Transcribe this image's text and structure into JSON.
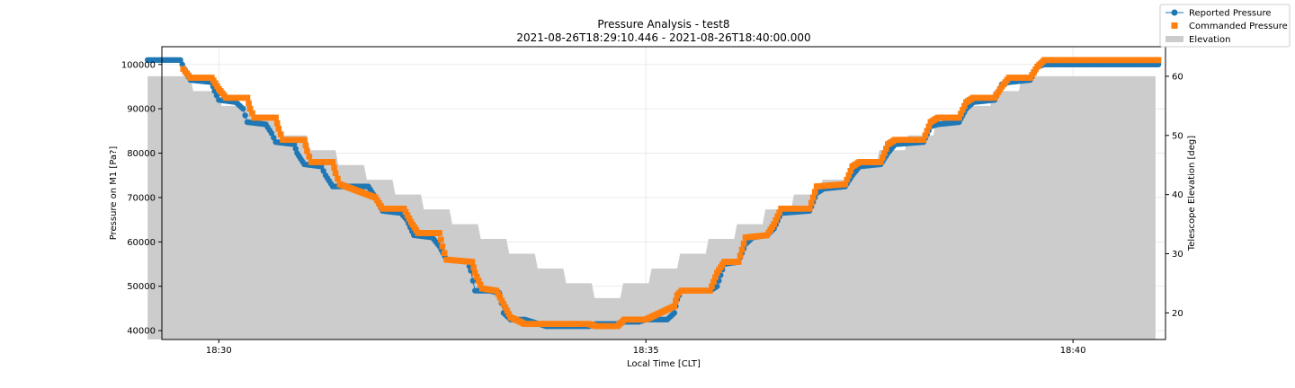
{
  "chart_data": {
    "type": "line",
    "title": "Pressure Analysis - test8",
    "subtitle": "2021-08-26T18:29:10.446 - 2021-08-26T18:40:00.000",
    "xlabel": "Local Time [CLT]",
    "ylabel": "Pressure on M1 [Pa?]",
    "y2label": "Telescope Elevation [deg]",
    "xlim": [
      "18:29:20",
      "18:41:05"
    ],
    "ylim": [
      38000,
      104000
    ],
    "y2lim": [
      15.5,
      65
    ],
    "x_ticks": [
      "18:30",
      "18:35",
      "18:40"
    ],
    "y_ticks": [
      40000,
      50000,
      60000,
      70000,
      80000,
      90000,
      100000
    ],
    "y2_ticks": [
      20,
      30,
      40,
      50,
      60
    ],
    "grid": true,
    "legend_position": "upper right, outside the axes",
    "series": [
      {
        "name": "Reported Pressure",
        "axis": "left",
        "style": "line with circle markers",
        "color": "#1f77b4",
        "points": [
          [
            "18:29:10",
            101000
          ],
          [
            "18:29:33",
            101000
          ],
          [
            "18:29:37",
            98000
          ],
          [
            "18:29:40",
            96500
          ],
          [
            "18:29:55",
            96000
          ],
          [
            "18:29:57",
            94000
          ],
          [
            "18:30:00",
            92000
          ],
          [
            "18:30:12",
            91500
          ],
          [
            "18:30:17",
            90000
          ],
          [
            "18:30:20",
            87000
          ],
          [
            "18:30:33",
            86500
          ],
          [
            "18:30:37",
            84500
          ],
          [
            "18:30:40",
            82500
          ],
          [
            "18:30:53",
            82000
          ],
          [
            "18:30:55",
            80000
          ],
          [
            "18:31:00",
            77500
          ],
          [
            "18:31:12",
            77000
          ],
          [
            "18:31:15",
            75000
          ],
          [
            "18:31:20",
            72500
          ],
          [
            "18:31:45",
            72500
          ],
          [
            "18:31:50",
            70000
          ],
          [
            "18:31:55",
            67000
          ],
          [
            "18:32:08",
            66500
          ],
          [
            "18:32:12",
            65000
          ],
          [
            "18:32:17",
            61500
          ],
          [
            "18:32:30",
            61000
          ],
          [
            "18:32:35",
            59000
          ],
          [
            "18:32:40",
            56000
          ],
          [
            "18:32:55",
            55500
          ],
          [
            "18:32:57",
            53500
          ],
          [
            "18:33:00",
            49000
          ],
          [
            "18:33:10",
            49000
          ],
          [
            "18:33:17",
            48500
          ],
          [
            "18:33:20",
            44000
          ],
          [
            "18:33:25",
            42500
          ],
          [
            "18:33:35",
            42500
          ],
          [
            "18:33:50",
            41000
          ],
          [
            "18:34:20",
            41000
          ],
          [
            "18:34:25",
            41500
          ],
          [
            "18:34:40",
            41500
          ],
          [
            "18:34:45",
            42000
          ],
          [
            "18:34:55",
            42000
          ],
          [
            "18:35:00",
            42500
          ],
          [
            "18:35:15",
            42500
          ],
          [
            "18:35:20",
            44000
          ],
          [
            "18:35:22",
            47000
          ],
          [
            "18:35:25",
            49000
          ],
          [
            "18:35:45",
            49000
          ],
          [
            "18:35:50",
            50000
          ],
          [
            "18:35:55",
            55000
          ],
          [
            "18:36:05",
            55500
          ],
          [
            "18:36:10",
            59500
          ],
          [
            "18:36:15",
            61000
          ],
          [
            "18:36:25",
            61500
          ],
          [
            "18:36:30",
            63000
          ],
          [
            "18:36:35",
            66500
          ],
          [
            "18:36:55",
            67000
          ],
          [
            "18:37:00",
            71000
          ],
          [
            "18:37:05",
            72000
          ],
          [
            "18:37:20",
            72500
          ],
          [
            "18:37:25",
            75000
          ],
          [
            "18:37:30",
            77000
          ],
          [
            "18:37:45",
            77500
          ],
          [
            "18:37:50",
            80000
          ],
          [
            "18:37:55",
            82000
          ],
          [
            "18:38:15",
            82500
          ],
          [
            "18:38:20",
            86000
          ],
          [
            "18:38:25",
            86500
          ],
          [
            "18:38:40",
            87000
          ],
          [
            "18:38:45",
            90000
          ],
          [
            "18:38:50",
            91500
          ],
          [
            "18:39:05",
            92000
          ],
          [
            "18:39:10",
            95500
          ],
          [
            "18:39:15",
            96000
          ],
          [
            "18:39:30",
            96500
          ],
          [
            "18:39:35",
            99500
          ],
          [
            "18:39:40",
            100000
          ],
          [
            "18:41:00",
            100000
          ]
        ]
      },
      {
        "name": "Commanded Pressure",
        "axis": "left",
        "style": "square markers",
        "color": "#ff7f0e",
        "points": [
          [
            "18:29:35",
            99000
          ],
          [
            "18:29:40",
            97000
          ],
          [
            "18:29:55",
            97000
          ],
          [
            "18:30:00",
            94500
          ],
          [
            "18:30:05",
            92500
          ],
          [
            "18:30:20",
            92500
          ],
          [
            "18:30:22",
            90000
          ],
          [
            "18:30:25",
            88000
          ],
          [
            "18:30:40",
            88000
          ],
          [
            "18:30:42",
            85500
          ],
          [
            "18:30:45",
            83000
          ],
          [
            "18:31:00",
            83000
          ],
          [
            "18:31:02",
            80500
          ],
          [
            "18:31:05",
            78000
          ],
          [
            "18:31:20",
            78000
          ],
          [
            "18:31:22",
            75500
          ],
          [
            "18:31:25",
            73000
          ],
          [
            "18:31:50",
            70000
          ],
          [
            "18:31:55",
            67500
          ],
          [
            "18:32:10",
            67500
          ],
          [
            "18:32:15",
            64500
          ],
          [
            "18:32:20",
            62000
          ],
          [
            "18:32:35",
            62000
          ],
          [
            "18:32:37",
            59000
          ],
          [
            "18:32:40",
            56000
          ],
          [
            "18:32:58",
            55500
          ],
          [
            "18:33:00",
            53000
          ],
          [
            "18:33:05",
            49500
          ],
          [
            "18:33:15",
            49000
          ],
          [
            "18:33:20",
            46000
          ],
          [
            "18:33:25",
            43000
          ],
          [
            "18:33:35",
            41500
          ],
          [
            "18:34:20",
            41500
          ],
          [
            "18:34:25",
            41000
          ],
          [
            "18:34:40",
            41000
          ],
          [
            "18:34:45",
            42500
          ],
          [
            "18:35:00",
            42500
          ],
          [
            "18:35:20",
            45500
          ],
          [
            "18:35:22",
            48000
          ],
          [
            "18:35:25",
            49000
          ],
          [
            "18:35:45",
            49000
          ],
          [
            "18:35:50",
            53000
          ],
          [
            "18:35:55",
            55500
          ],
          [
            "18:36:05",
            55500
          ],
          [
            "18:36:10",
            61000
          ],
          [
            "18:36:25",
            61500
          ],
          [
            "18:36:30",
            64000
          ],
          [
            "18:36:35",
            67500
          ],
          [
            "18:36:55",
            67500
          ],
          [
            "18:37:00",
            72500
          ],
          [
            "18:37:20",
            73000
          ],
          [
            "18:37:25",
            77000
          ],
          [
            "18:37:30",
            78000
          ],
          [
            "18:37:45",
            78000
          ],
          [
            "18:37:50",
            82000
          ],
          [
            "18:37:55",
            83000
          ],
          [
            "18:38:15",
            83000
          ],
          [
            "18:38:20",
            87000
          ],
          [
            "18:38:25",
            88000
          ],
          [
            "18:38:40",
            88000
          ],
          [
            "18:38:45",
            91500
          ],
          [
            "18:38:50",
            92500
          ],
          [
            "18:39:05",
            92500
          ],
          [
            "18:39:10",
            95000
          ],
          [
            "18:39:15",
            97000
          ],
          [
            "18:39:30",
            97000
          ],
          [
            "18:39:35",
            99500
          ],
          [
            "18:39:40",
            101000
          ],
          [
            "18:41:00",
            101000
          ]
        ]
      },
      {
        "name": "Elevation",
        "axis": "right",
        "style": "filled area",
        "color": "#cccccc",
        "points": [
          [
            "18:29:10",
            60
          ],
          [
            "18:29:40",
            60
          ],
          [
            "18:29:42",
            57.5
          ],
          [
            "18:30:00",
            57.5
          ],
          [
            "18:30:02",
            55
          ],
          [
            "18:30:22",
            55
          ],
          [
            "18:30:24",
            52.5
          ],
          [
            "18:30:42",
            52.5
          ],
          [
            "18:30:44",
            50
          ],
          [
            "18:31:02",
            50
          ],
          [
            "18:31:04",
            47.5
          ],
          [
            "18:31:22",
            47.5
          ],
          [
            "18:31:24",
            45
          ],
          [
            "18:31:42",
            45
          ],
          [
            "18:31:44",
            42.5
          ],
          [
            "18:32:02",
            42.5
          ],
          [
            "18:32:04",
            40
          ],
          [
            "18:32:22",
            40
          ],
          [
            "18:32:24",
            37.5
          ],
          [
            "18:32:42",
            37.5
          ],
          [
            "18:32:44",
            35
          ],
          [
            "18:33:02",
            35
          ],
          [
            "18:33:04",
            32.5
          ],
          [
            "18:33:22",
            32.5
          ],
          [
            "18:33:24",
            30
          ],
          [
            "18:33:42",
            30
          ],
          [
            "18:33:44",
            27.5
          ],
          [
            "18:34:02",
            27.5
          ],
          [
            "18:34:04",
            25
          ],
          [
            "18:34:22",
            25
          ],
          [
            "18:34:24",
            22.5
          ],
          [
            "18:34:42",
            22.5
          ],
          [
            "18:34:44",
            25
          ],
          [
            "18:35:02",
            25
          ],
          [
            "18:35:04",
            27.5
          ],
          [
            "18:35:22",
            27.5
          ],
          [
            "18:35:24",
            30
          ],
          [
            "18:35:42",
            30
          ],
          [
            "18:35:44",
            32.5
          ],
          [
            "18:36:02",
            32.5
          ],
          [
            "18:36:04",
            35
          ],
          [
            "18:36:22",
            35
          ],
          [
            "18:36:24",
            37.5
          ],
          [
            "18:36:42",
            37.5
          ],
          [
            "18:36:44",
            40
          ],
          [
            "18:37:02",
            40
          ],
          [
            "18:37:04",
            42.5
          ],
          [
            "18:37:22",
            42.5
          ],
          [
            "18:37:24",
            45
          ],
          [
            "18:37:42",
            45
          ],
          [
            "18:37:44",
            47.5
          ],
          [
            "18:38:02",
            47.5
          ],
          [
            "18:38:04",
            50
          ],
          [
            "18:38:22",
            50
          ],
          [
            "18:38:24",
            52.5
          ],
          [
            "18:38:42",
            52.5
          ],
          [
            "18:38:44",
            55
          ],
          [
            "18:39:02",
            55
          ],
          [
            "18:39:04",
            57.5
          ],
          [
            "18:39:22",
            57.5
          ],
          [
            "18:39:24",
            60
          ],
          [
            "18:40:58",
            60
          ]
        ]
      }
    ]
  }
}
